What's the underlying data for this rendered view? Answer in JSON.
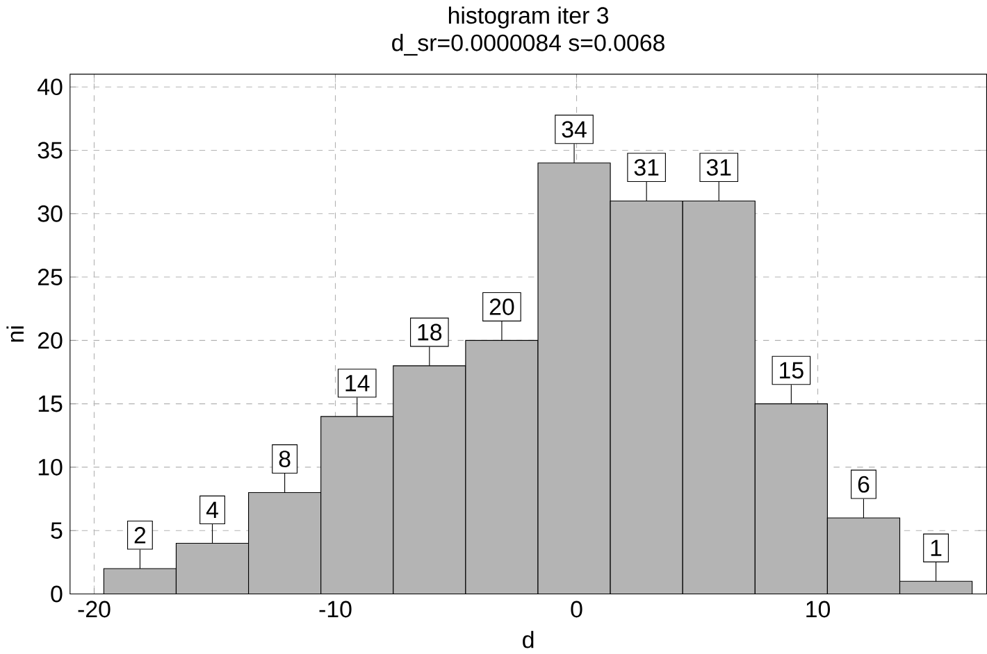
{
  "chart_data": {
    "type": "histogram",
    "title": "histogram iter 3",
    "subtitle": "d_sr=0.0000084    s=0.0068",
    "xlabel": "d",
    "ylabel": "ni",
    "bins": [
      -19.6,
      -16.6,
      -13.6,
      -10.6,
      -7.6,
      -4.6,
      -1.6,
      1.4,
      4.4,
      7.4,
      10.4,
      13.4,
      16.4
    ],
    "values": [
      2,
      4,
      8,
      14,
      18,
      20,
      34,
      31,
      31,
      15,
      6,
      1
    ],
    "color": "#b4b4b4",
    "xlim": [
      -21,
      17
    ],
    "ylim": [
      0,
      41
    ],
    "xticks": [
      -20,
      -10,
      0,
      10
    ],
    "yticks": [
      0,
      5,
      10,
      15,
      20,
      25,
      30,
      35,
      40
    ],
    "grid": true,
    "data_labels": true
  }
}
